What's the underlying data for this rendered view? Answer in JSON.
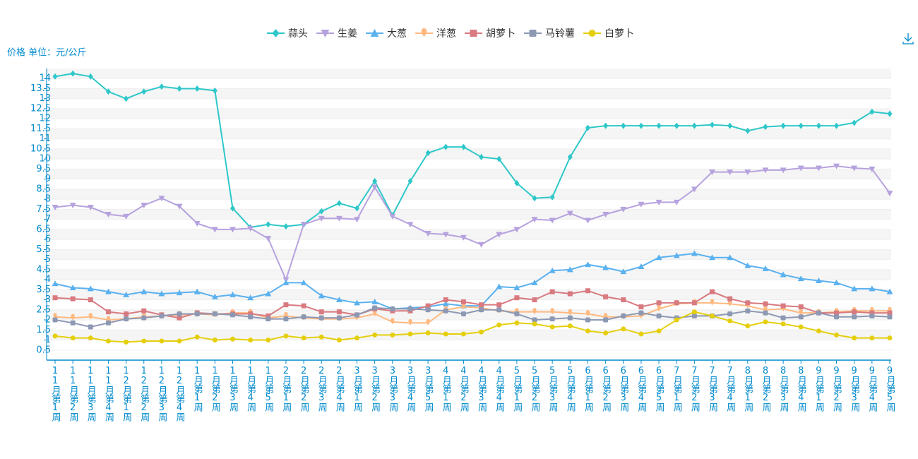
{
  "chart_data": {
    "type": "line",
    "y_axis_label": "价格 单位：元/公斤",
    "categories": [
      "11月第1周",
      "11月第2周",
      "11月第3周",
      "11月第4周",
      "12月第1周",
      "12月第2周",
      "12月第3周",
      "12月第4周",
      "1月第1周",
      "1月第2周",
      "1月第3周",
      "1月第4周",
      "1月第5周",
      "2月第1周",
      "2月第2周",
      "2月第3周",
      "2月第4周",
      "3月第1周",
      "3月第2周",
      "3月第3周",
      "3月第4周",
      "3月第5周",
      "4月第1周",
      "4月第2周",
      "4月第3周",
      "4月第4周",
      "5月第1周",
      "5月第2周",
      "5月第3周",
      "5月第4周",
      "6月第1周",
      "6月第2周",
      "6月第3周",
      "6月第4周",
      "6月第5周",
      "7月第1周",
      "7月第2周",
      "7月第3周",
      "7月第4周",
      "8月第1周",
      "8月第2周",
      "8月第3周",
      "8月第4周",
      "9月第1周",
      "9月第2周",
      "9月第3周",
      "9月第4周",
      "9月第5周"
    ],
    "series": [
      {
        "name": "蒜头",
        "color": "#2ec7c9",
        "marker": "diamond",
        "values": [
          14.1,
          14.25,
          14.1,
          13.35,
          13.0,
          13.35,
          13.6,
          13.5,
          13.5,
          13.4,
          7.55,
          6.6,
          6.75,
          6.65,
          6.75,
          7.4,
          7.8,
          7.55,
          8.9,
          7.2,
          8.9,
          10.3,
          10.6,
          10.6,
          10.1,
          10.0,
          8.8,
          8.05,
          8.1,
          10.1,
          11.55,
          11.65,
          11.65,
          11.65,
          11.65,
          11.65,
          11.65,
          11.7,
          11.65,
          11.4,
          11.6,
          11.65,
          11.65,
          11.65,
          11.65,
          11.8,
          12.35,
          12.25
        ]
      },
      {
        "name": "生姜",
        "color": "#b6a2de",
        "marker": "triangle-down",
        "values": [
          7.6,
          7.7,
          7.6,
          7.25,
          7.15,
          7.7,
          8.05,
          7.65,
          6.8,
          6.5,
          6.5,
          6.55,
          6.05,
          4.0,
          6.75,
          7.05,
          7.05,
          7.0,
          8.6,
          7.15,
          6.75,
          6.3,
          6.25,
          6.1,
          5.75,
          6.25,
          6.5,
          7.0,
          6.95,
          7.3,
          6.95,
          7.25,
          7.5,
          7.75,
          7.85,
          7.85,
          8.5,
          9.35,
          9.35,
          9.35,
          9.45,
          9.45,
          9.55,
          9.55,
          9.65,
          9.55,
          9.5,
          8.3
        ]
      },
      {
        "name": "大葱",
        "color": "#5ab1ef",
        "marker": "triangle",
        "values": [
          3.8,
          3.6,
          3.55,
          3.4,
          3.25,
          3.4,
          3.3,
          3.35,
          3.4,
          3.15,
          3.25,
          3.1,
          3.3,
          3.85,
          3.85,
          3.2,
          3.0,
          2.85,
          2.9,
          2.55,
          2.6,
          2.65,
          2.8,
          2.7,
          2.7,
          3.65,
          3.6,
          3.85,
          4.45,
          4.5,
          4.75,
          4.6,
          4.4,
          4.65,
          5.1,
          5.2,
          5.3,
          5.1,
          5.1,
          4.7,
          4.55,
          4.25,
          4.05,
          3.95,
          3.85,
          3.55,
          3.55,
          3.4
        ]
      },
      {
        "name": "洋葱",
        "color": "#ffb980",
        "marker": "pin",
        "values": [
          2.15,
          2.1,
          2.15,
          2.0,
          2.05,
          2.15,
          2.2,
          2.25,
          2.3,
          2.25,
          2.35,
          2.35,
          2.1,
          2.2,
          2.1,
          2.05,
          2.05,
          2.1,
          2.3,
          1.9,
          1.85,
          1.85,
          2.5,
          2.65,
          2.6,
          2.45,
          2.4,
          2.4,
          2.4,
          2.35,
          2.3,
          2.15,
          2.15,
          2.2,
          2.55,
          2.8,
          2.85,
          2.85,
          2.8,
          2.7,
          2.5,
          2.55,
          2.35,
          2.35,
          2.4,
          2.45,
          2.45,
          2.45
        ]
      },
      {
        "name": "胡萝卜",
        "color": "#d87a80",
        "marker": "square",
        "values": [
          3.1,
          3.05,
          3.0,
          2.4,
          2.3,
          2.45,
          2.25,
          2.1,
          2.35,
          2.3,
          2.3,
          2.3,
          2.2,
          2.75,
          2.7,
          2.4,
          2.4,
          2.25,
          2.55,
          2.45,
          2.45,
          2.7,
          3.0,
          2.9,
          2.75,
          2.75,
          3.1,
          3.0,
          3.4,
          3.3,
          3.45,
          3.15,
          3.0,
          2.65,
          2.85,
          2.85,
          2.85,
          3.4,
          3.05,
          2.85,
          2.8,
          2.7,
          2.65,
          2.35,
          2.35,
          2.4,
          2.35,
          2.35
        ]
      },
      {
        "name": "马铃薯",
        "color": "#8d98b3",
        "marker": "roundrect",
        "values": [
          2.0,
          1.85,
          1.65,
          1.85,
          2.05,
          2.1,
          2.2,
          2.3,
          2.3,
          2.3,
          2.25,
          2.15,
          2.05,
          2.05,
          2.15,
          2.1,
          2.1,
          2.25,
          2.6,
          2.55,
          2.55,
          2.5,
          2.45,
          2.3,
          2.5,
          2.5,
          2.3,
          2.0,
          2.05,
          2.1,
          2.0,
          2.0,
          2.2,
          2.35,
          2.2,
          2.1,
          2.2,
          2.2,
          2.3,
          2.45,
          2.35,
          2.1,
          2.15,
          2.35,
          2.15,
          2.15,
          2.2,
          2.15
        ]
      },
      {
        "name": "白萝卜",
        "color": "#e5cf0d",
        "marker": "circle",
        "values": [
          1.2,
          1.1,
          1.1,
          0.95,
          0.9,
          0.95,
          0.95,
          0.95,
          1.15,
          1.0,
          1.05,
          1.0,
          1.0,
          1.2,
          1.1,
          1.15,
          1.0,
          1.1,
          1.25,
          1.25,
          1.3,
          1.35,
          1.3,
          1.3,
          1.4,
          1.75,
          1.85,
          1.8,
          1.65,
          1.7,
          1.45,
          1.35,
          1.55,
          1.3,
          1.45,
          2.0,
          2.4,
          2.2,
          1.95,
          1.7,
          1.9,
          1.8,
          1.65,
          1.45,
          1.25,
          1.1,
          1.1,
          1.1
        ]
      }
    ],
    "ylim": [
      0,
      14.5
    ],
    "yticks": [
      0.5,
      1,
      1.5,
      2,
      2.5,
      3,
      3.5,
      4,
      4.5,
      5,
      5.5,
      6,
      6.5,
      7,
      7.5,
      8,
      8.5,
      9,
      9.5,
      10,
      10.5,
      11,
      11.5,
      12,
      12.5,
      13,
      13.5,
      14
    ],
    "grid": true
  }
}
